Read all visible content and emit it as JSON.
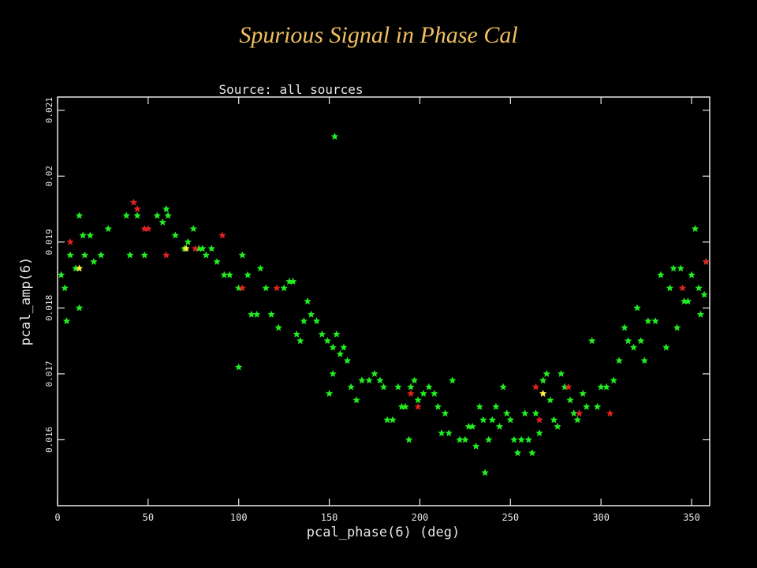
{
  "slide": {
    "title": "Spurious Signal in Phase Cal"
  },
  "colors": {
    "background": "#000000",
    "title": "#f0c060",
    "axis": "#e8e8e8"
  },
  "chart_data": {
    "type": "scatter",
    "title": "Source: all sources",
    "xlabel": "pcal_phase(6) (deg)",
    "ylabel": "pcal_amp(6)",
    "xlim": [
      0,
      360
    ],
    "ylim": [
      0.015,
      0.0212
    ],
    "xticks": [
      0,
      50,
      100,
      150,
      200,
      250,
      300,
      350
    ],
    "yticks": [
      0.016,
      0.017,
      0.018,
      0.019,
      0.02,
      0.021
    ],
    "grid": false,
    "series": [
      {
        "color": "#22ee22",
        "marker_mix": [
          "star",
          "square",
          "triangle",
          "diamond",
          "circle"
        ],
        "points": [
          [
            2,
            0.0185
          ],
          [
            4,
            0.0183
          ],
          [
            5,
            0.0178
          ],
          [
            7,
            0.0188
          ],
          [
            10,
            0.0186
          ],
          [
            12,
            0.0194
          ],
          [
            12,
            0.018
          ],
          [
            14,
            0.0191
          ],
          [
            15,
            0.0188
          ],
          [
            18,
            0.0191
          ],
          [
            20,
            0.0187
          ],
          [
            24,
            0.0188
          ],
          [
            28,
            0.0192
          ],
          [
            38,
            0.0194
          ],
          [
            40,
            0.0188
          ],
          [
            44,
            0.0194
          ],
          [
            48,
            0.0188
          ],
          [
            55,
            0.0194
          ],
          [
            58,
            0.0193
          ],
          [
            60,
            0.0195
          ],
          [
            61,
            0.0194
          ],
          [
            65,
            0.0191
          ],
          [
            70,
            0.0189
          ],
          [
            72,
            0.019
          ],
          [
            75,
            0.0192
          ],
          [
            78,
            0.0189
          ],
          [
            80,
            0.0189
          ],
          [
            82,
            0.0188
          ],
          [
            85,
            0.0189
          ],
          [
            88,
            0.0187
          ],
          [
            92,
            0.0185
          ],
          [
            95,
            0.0185
          ],
          [
            100,
            0.0183
          ],
          [
            100,
            0.0171
          ],
          [
            102,
            0.0188
          ],
          [
            105,
            0.0185
          ],
          [
            107,
            0.0179
          ],
          [
            110,
            0.0179
          ],
          [
            112,
            0.0186
          ],
          [
            115,
            0.0183
          ],
          [
            118,
            0.0179
          ],
          [
            122,
            0.0177
          ],
          [
            125,
            0.0183
          ],
          [
            128,
            0.0184
          ],
          [
            130,
            0.0184
          ],
          [
            132,
            0.0176
          ],
          [
            134,
            0.0175
          ],
          [
            136,
            0.0178
          ],
          [
            138,
            0.0181
          ],
          [
            140,
            0.0179
          ],
          [
            143,
            0.0178
          ],
          [
            146,
            0.0176
          ],
          [
            149,
            0.0175
          ],
          [
            150,
            0.0167
          ],
          [
            152,
            0.0174
          ],
          [
            152,
            0.017
          ],
          [
            153,
            0.0206
          ],
          [
            154,
            0.0176
          ],
          [
            156,
            0.0173
          ],
          [
            158,
            0.0174
          ],
          [
            160,
            0.0172
          ],
          [
            162,
            0.0168
          ],
          [
            165,
            0.0166
          ],
          [
            168,
            0.0169
          ],
          [
            172,
            0.0169
          ],
          [
            175,
            0.017
          ],
          [
            178,
            0.0169
          ],
          [
            180,
            0.0168
          ],
          [
            182,
            0.0163
          ],
          [
            185,
            0.0163
          ],
          [
            188,
            0.0168
          ],
          [
            190,
            0.0165
          ],
          [
            192,
            0.0165
          ],
          [
            194,
            0.016
          ],
          [
            195,
            0.0168
          ],
          [
            197,
            0.0169
          ],
          [
            199,
            0.0166
          ],
          [
            202,
            0.0167
          ],
          [
            205,
            0.0168
          ],
          [
            208,
            0.0167
          ],
          [
            210,
            0.0165
          ],
          [
            212,
            0.0161
          ],
          [
            214,
            0.0164
          ],
          [
            216,
            0.0161
          ],
          [
            218,
            0.0169
          ],
          [
            222,
            0.016
          ],
          [
            225,
            0.016
          ],
          [
            227,
            0.0162
          ],
          [
            229,
            0.0162
          ],
          [
            231,
            0.0159
          ],
          [
            233,
            0.0165
          ],
          [
            235,
            0.0163
          ],
          [
            236,
            0.0155
          ],
          [
            238,
            0.016
          ],
          [
            240,
            0.0163
          ],
          [
            242,
            0.0165
          ],
          [
            244,
            0.0162
          ],
          [
            246,
            0.0168
          ],
          [
            248,
            0.0164
          ],
          [
            250,
            0.0163
          ],
          [
            252,
            0.016
          ],
          [
            254,
            0.0158
          ],
          [
            256,
            0.016
          ],
          [
            258,
            0.0164
          ],
          [
            260,
            0.016
          ],
          [
            262,
            0.0158
          ],
          [
            264,
            0.0164
          ],
          [
            266,
            0.0161
          ],
          [
            268,
            0.0169
          ],
          [
            270,
            0.017
          ],
          [
            272,
            0.0166
          ],
          [
            274,
            0.0163
          ],
          [
            276,
            0.0162
          ],
          [
            278,
            0.017
          ],
          [
            280,
            0.0168
          ],
          [
            283,
            0.0166
          ],
          [
            285,
            0.0164
          ],
          [
            287,
            0.0163
          ],
          [
            290,
            0.0167
          ],
          [
            292,
            0.0165
          ],
          [
            295,
            0.0175
          ],
          [
            298,
            0.0165
          ],
          [
            300,
            0.0168
          ],
          [
            303,
            0.0168
          ],
          [
            307,
            0.0169
          ],
          [
            310,
            0.0172
          ],
          [
            313,
            0.0177
          ],
          [
            315,
            0.0175
          ],
          [
            318,
            0.0174
          ],
          [
            320,
            0.018
          ],
          [
            322,
            0.0175
          ],
          [
            324,
            0.0172
          ],
          [
            326,
            0.0178
          ],
          [
            330,
            0.0178
          ],
          [
            333,
            0.0185
          ],
          [
            336,
            0.0174
          ],
          [
            338,
            0.0183
          ],
          [
            340,
            0.0186
          ],
          [
            342,
            0.0177
          ],
          [
            344,
            0.0186
          ],
          [
            346,
            0.0181
          ],
          [
            348,
            0.0181
          ],
          [
            350,
            0.0185
          ],
          [
            352,
            0.0192
          ],
          [
            354,
            0.0183
          ],
          [
            355,
            0.0179
          ],
          [
            357,
            0.0182
          ],
          [
            358,
            0.0187
          ]
        ]
      },
      {
        "color": "#dd2222",
        "marker_mix": [
          "star"
        ],
        "points": [
          [
            7,
            0.019
          ],
          [
            42,
            0.0196
          ],
          [
            44,
            0.0195
          ],
          [
            48,
            0.0192
          ],
          [
            50,
            0.0192
          ],
          [
            60,
            0.0188
          ],
          [
            76,
            0.0189
          ],
          [
            91,
            0.0191
          ],
          [
            102,
            0.0183
          ],
          [
            121,
            0.0183
          ],
          [
            195,
            0.0167
          ],
          [
            199,
            0.0165
          ],
          [
            264,
            0.0168
          ],
          [
            266,
            0.0163
          ],
          [
            282,
            0.0168
          ],
          [
            288,
            0.0164
          ],
          [
            305,
            0.0164
          ],
          [
            345,
            0.0183
          ],
          [
            358,
            0.0187
          ]
        ]
      },
      {
        "color": "#ffee44",
        "marker_mix": [
          "star",
          "circle"
        ],
        "points": [
          [
            12,
            0.0186
          ],
          [
            71,
            0.0189
          ],
          [
            268,
            0.0167
          ]
        ]
      }
    ]
  }
}
